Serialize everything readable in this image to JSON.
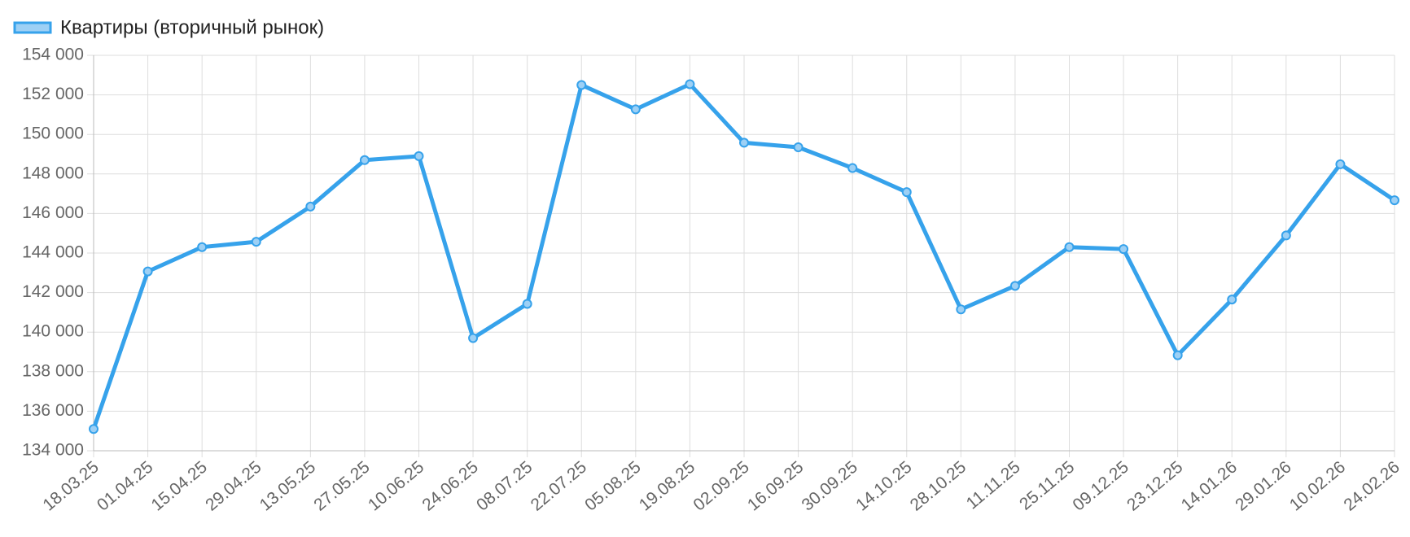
{
  "chart_data": {
    "type": "line",
    "categories": [
      "18.03.25",
      "01.04.25",
      "15.04.25",
      "29.04.25",
      "13.05.25",
      "27.05.25",
      "10.06.25",
      "24.06.25",
      "08.07.25",
      "22.07.25",
      "05.08.25",
      "19.08.25",
      "02.09.25",
      "16.09.25",
      "30.09.25",
      "14.10.25",
      "28.10.25",
      "11.11.25",
      "25.11.25",
      "09.12.25",
      "23.12.25",
      "14.01.26",
      "29.01.26",
      "10.02.26",
      "24.02.26"
    ],
    "series": [
      {
        "name": "Квартиры (вторичный рынок)",
        "color": "#36a2eb",
        "values": [
          135100,
          143070,
          144300,
          144570,
          146350,
          148700,
          148900,
          139700,
          141430,
          152500,
          151270,
          152540,
          149580,
          149350,
          148300,
          147080,
          141150,
          142340,
          144300,
          144200,
          138830,
          141650,
          144890,
          148490,
          146670
        ]
      }
    ],
    "ylim": [
      134000,
      154000
    ],
    "yticks": [
      {
        "value": 134000,
        "label": "134 000"
      },
      {
        "value": 136000,
        "label": "136 000"
      },
      {
        "value": 138000,
        "label": "138 000"
      },
      {
        "value": 140000,
        "label": "140 000"
      },
      {
        "value": 142000,
        "label": "142 000"
      },
      {
        "value": 144000,
        "label": "144 000"
      },
      {
        "value": 146000,
        "label": "146 000"
      },
      {
        "value": 148000,
        "label": "148 000"
      },
      {
        "value": 150000,
        "label": "150 000"
      },
      {
        "value": 152000,
        "label": "152 000"
      },
      {
        "value": 154000,
        "label": "154 000"
      }
    ],
    "grid": true,
    "legend": "top-left"
  }
}
